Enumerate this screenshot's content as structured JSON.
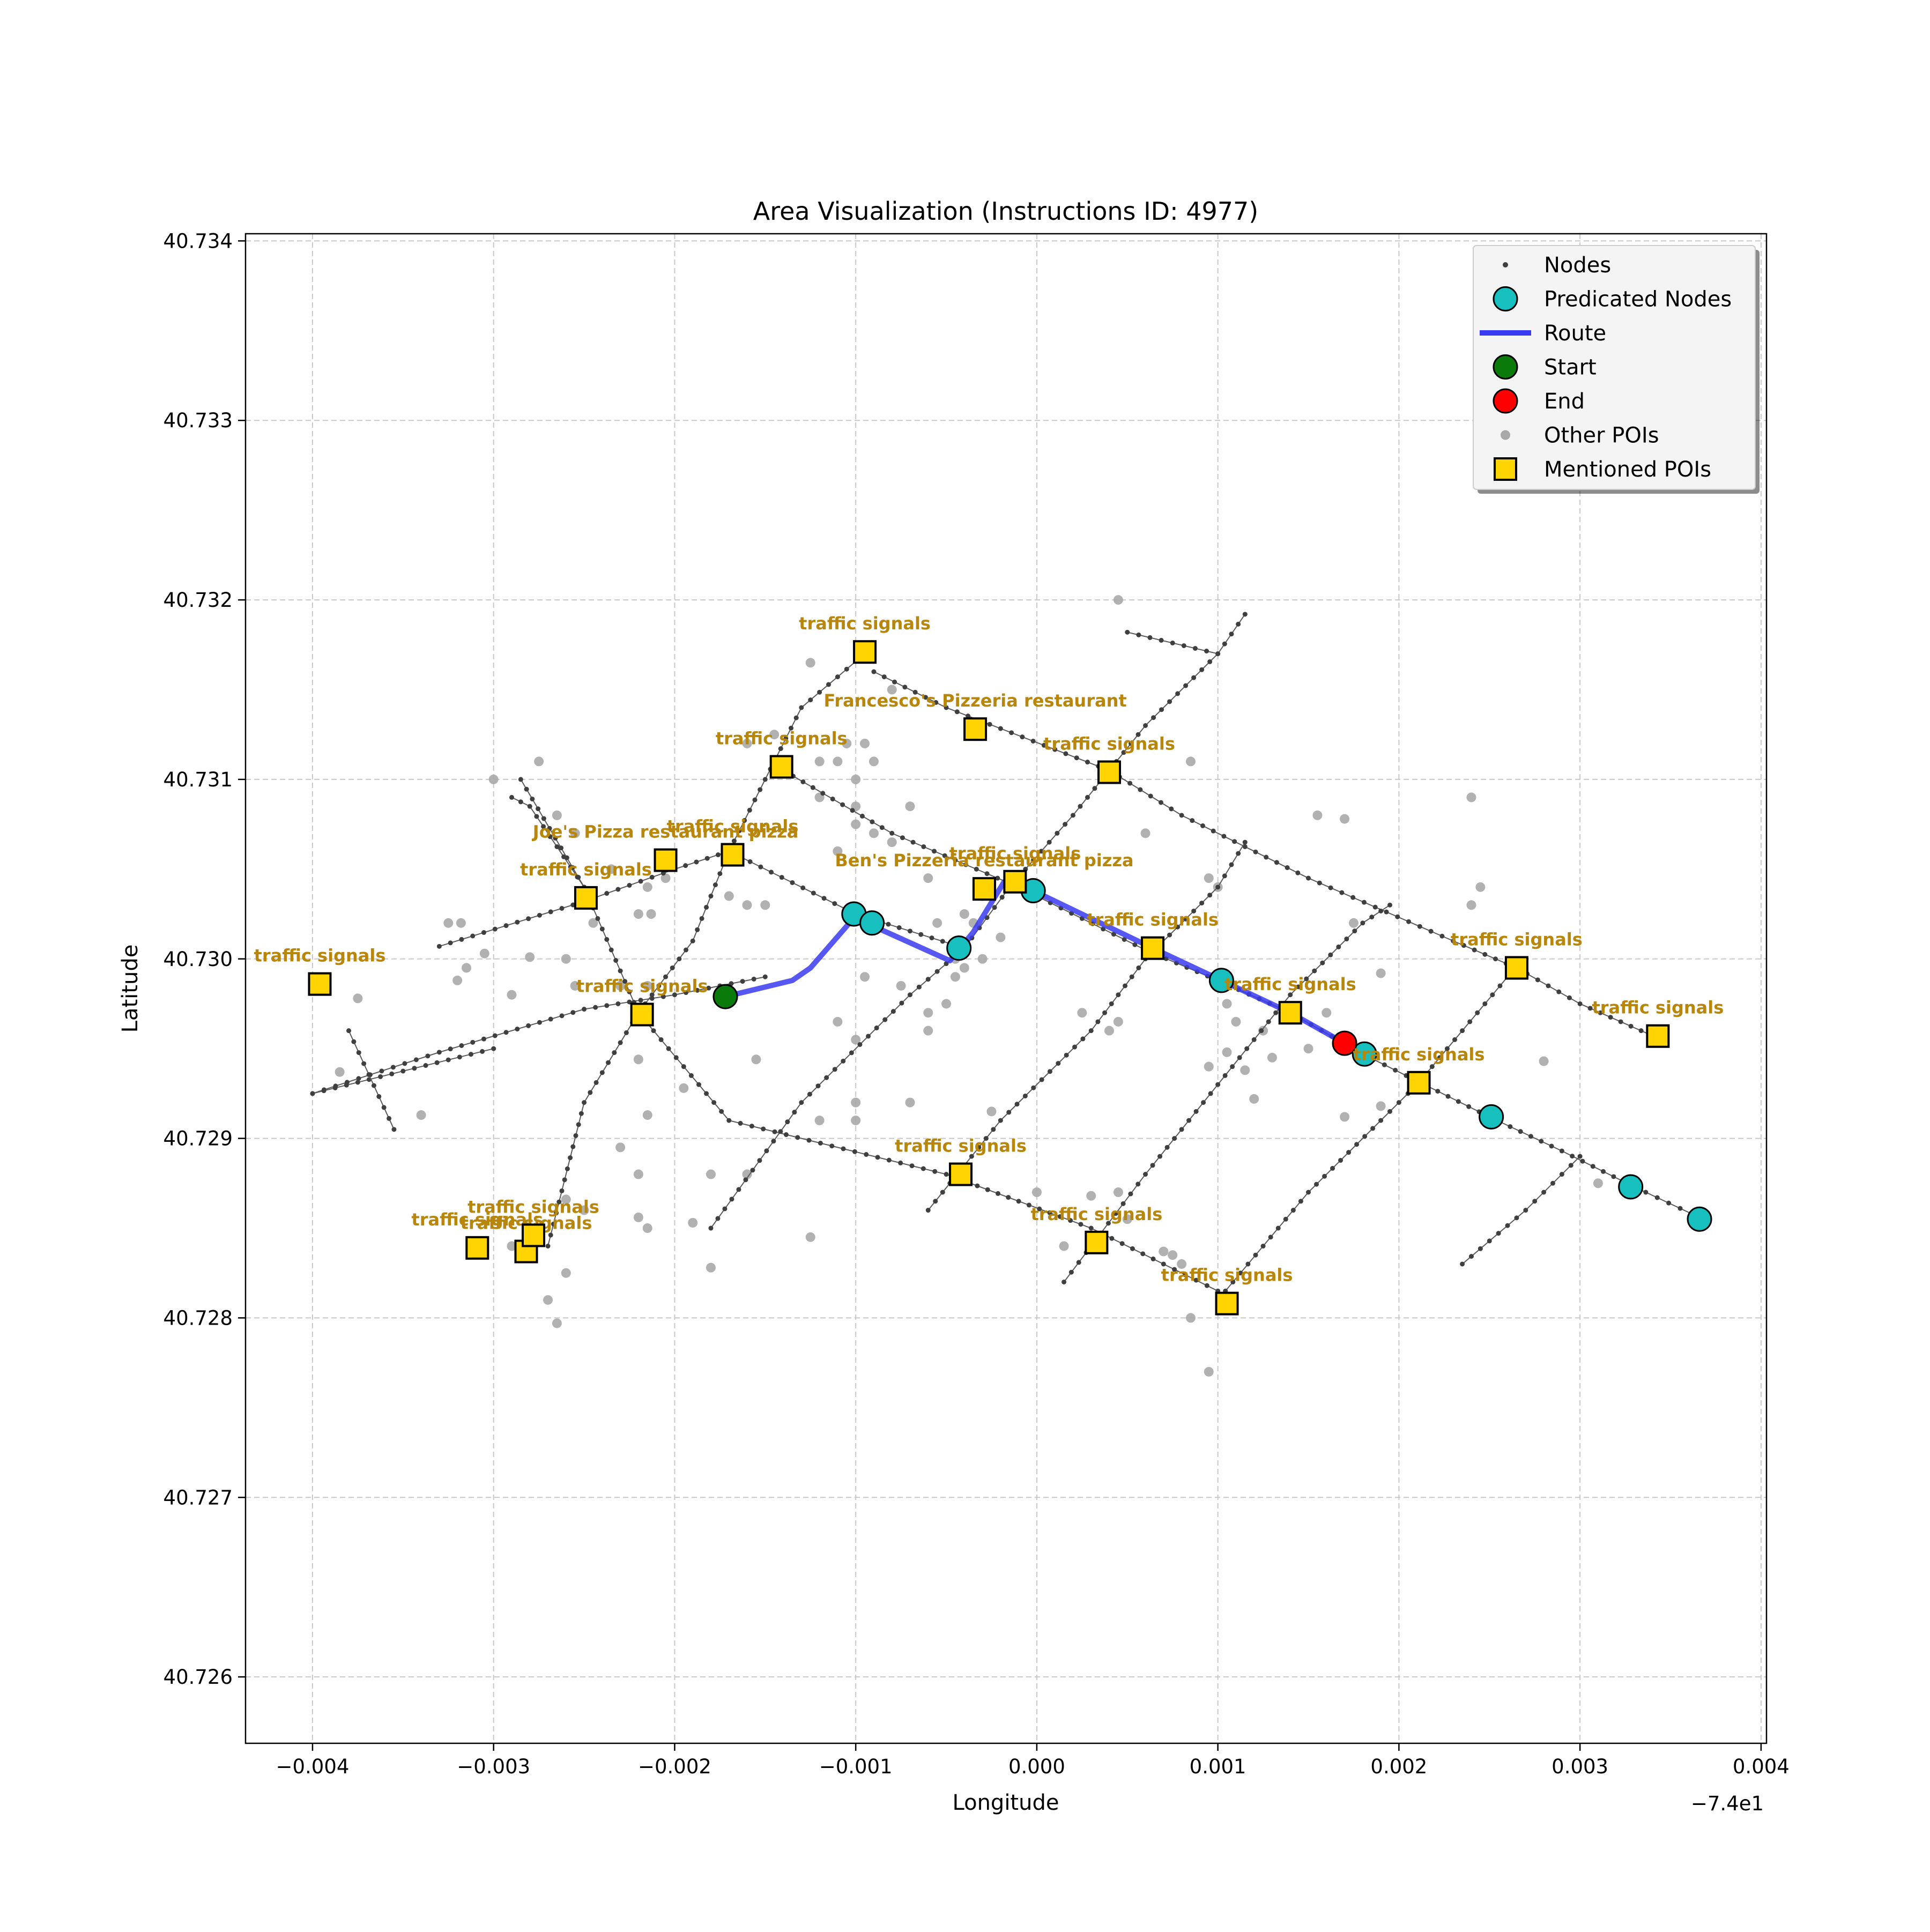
{
  "chart_data": {
    "type": "scatter",
    "title": "Area Visualization (Instructions ID: 4977)",
    "xlabel": "Longitude",
    "ylabel": "Latitude",
    "x_offset_label": "−7.4e1",
    "xlim": [
      -0.00437,
      0.00403
    ],
    "ylim": [
      40.72563,
      40.73404
    ],
    "xticks": [
      -0.004,
      -0.003,
      -0.002,
      -0.001,
      0.0,
      0.001,
      0.002,
      0.003,
      0.004
    ],
    "xtick_labels": [
      "−0.004",
      "−0.003",
      "−0.002",
      "−0.001",
      "0.000",
      "0.001",
      "0.002",
      "0.003",
      "0.004"
    ],
    "yticks": [
      40.726,
      40.727,
      40.728,
      40.729,
      40.73,
      40.731,
      40.732,
      40.733,
      40.734
    ],
    "ytick_labels": [
      "40.726",
      "40.727",
      "40.728",
      "40.729",
      "40.730",
      "40.731",
      "40.732",
      "40.733",
      "40.734"
    ],
    "grid": true,
    "legend_position": "top-right",
    "legend": [
      {
        "label": "Nodes",
        "kind": "node"
      },
      {
        "label": "Predicated Nodes",
        "kind": "predicated"
      },
      {
        "label": "Route",
        "kind": "route"
      },
      {
        "label": "Start",
        "kind": "start"
      },
      {
        "label": "End",
        "kind": "end"
      },
      {
        "label": "Other POIs",
        "kind": "other"
      },
      {
        "label": "Mentioned POIs",
        "kind": "mentioned"
      }
    ],
    "colors": {
      "node": "#3f3f3f",
      "edge": "#5a5a5a",
      "predicated": "#18bfbf",
      "route": "#3a3af0",
      "start": "#0a7a0a",
      "end": "#ff0000",
      "other_poi": "#a8a8a8",
      "mentioned_poi": "#ffd400",
      "poi_label": "#b8860b"
    },
    "streets": [
      [
        [
          -0.004,
          40.72925
        ],
        [
          -0.0033,
          40.72948
        ],
        [
          -0.0025,
          40.72972
        ],
        [
          -0.002,
          40.7298
        ],
        [
          -0.0015,
          40.7299
        ]
      ],
      [
        [
          -0.0033,
          40.73007
        ],
        [
          -0.0025,
          40.73032
        ],
        [
          -0.002,
          40.7305
        ],
        [
          -0.0017,
          40.7306
        ]
      ],
      [
        [
          -0.0017,
          40.7306
        ],
        [
          -0.001,
          40.73025
        ],
        [
          -0.0004,
          40.73006
        ]
      ],
      [
        [
          -0.004,
          40.72925
        ],
        [
          -0.003,
          40.7295
        ]
      ],
      [
        [
          -0.0029,
          40.7309
        ],
        [
          -0.0028,
          40.73085
        ],
        [
          -0.0025,
          40.7304
        ],
        [
          -0.0022,
          40.7297
        ],
        [
          -0.0017,
          40.7291
        ],
        [
          -0.0005,
          40.7288
        ],
        [
          -0.0001,
          40.72865
        ],
        [
          0.0003,
          40.7285
        ],
        [
          0.0007,
          40.7283
        ],
        [
          0.001,
          40.72815
        ]
      ],
      [
        [
          -0.00285,
          40.731
        ],
        [
          -0.0025,
          40.7304
        ]
      ],
      [
        [
          -0.0038,
          40.7296
        ],
        [
          -0.00355,
          40.72905
        ]
      ],
      [
        [
          -0.0027,
          40.7284
        ],
        [
          -0.0025,
          40.7292
        ],
        [
          -0.0022,
          40.7297
        ],
        [
          -0.0019,
          40.7301
        ],
        [
          -0.0017,
          40.7306
        ],
        [
          -0.0013,
          40.7314
        ],
        [
          -0.00095,
          40.7317
        ]
      ],
      [
        [
          -0.0009,
          40.7316
        ],
        [
          -0.0005,
          40.7314
        ],
        [
          0.0004,
          40.73105
        ],
        [
          0.0008,
          40.7308
        ],
        [
          0.0015,
          40.73045
        ],
        [
          0.0023,
          40.7301
        ],
        [
          0.00265,
          40.72995
        ],
        [
          0.003,
          40.72975
        ],
        [
          0.00345,
          40.72955
        ]
      ],
      [
        [
          -0.0014,
          40.73105
        ],
        [
          -0.0008,
          40.7307
        ],
        [
          -0.0001,
          40.7304
        ],
        [
          0.0006,
          40.73005
        ],
        [
          0.001,
          40.72988
        ],
        [
          0.0014,
          40.7297
        ],
        [
          0.0018,
          40.72947
        ],
        [
          0.0021,
          40.72932
        ],
        [
          0.0025,
          40.72912
        ],
        [
          0.0029,
          40.72893
        ],
        [
          0.0033,
          40.72873
        ],
        [
          0.00368,
          40.72855
        ]
      ],
      [
        [
          -0.0018,
          40.7285
        ],
        [
          -0.0013,
          40.7292
        ],
        [
          -0.0007,
          40.7298
        ],
        [
          -0.0004,
          40.73006
        ],
        [
          -0.00015,
          40.7304
        ],
        [
          0.0002,
          40.7308
        ],
        [
          0.0006,
          40.7313
        ],
        [
          0.001,
          40.7317
        ],
        [
          0.00115,
          40.73192
        ]
      ],
      [
        [
          0.0005,
          40.73182
        ],
        [
          0.001,
          40.7317
        ]
      ],
      [
        [
          -0.0006,
          40.7286
        ],
        [
          -0.0002,
          40.7291
        ],
        [
          0.0003,
          40.7296
        ],
        [
          0.0006,
          40.73
        ],
        [
          0.001,
          40.7304
        ],
        [
          0.00115,
          40.73065
        ]
      ],
      [
        [
          0.00015,
          40.7282
        ],
        [
          0.0006,
          40.7288
        ],
        [
          0.001,
          40.7293
        ],
        [
          0.0014,
          40.7298
        ],
        [
          0.0018,
          40.7302
        ],
        [
          0.00195,
          40.7303
        ]
      ],
      [
        [
          0.001,
          40.7281
        ],
        [
          0.0015,
          40.7287
        ],
        [
          0.0019,
          40.7291
        ],
        [
          0.0021,
          40.7293
        ],
        [
          0.0026,
          40.7299
        ],
        [
          0.00268,
          40.72998
        ]
      ],
      [
        [
          0.00235,
          40.7283
        ],
        [
          0.0027,
          40.7286
        ],
        [
          0.003,
          40.7289
        ]
      ]
    ],
    "route": [
      [
        -0.00172,
        40.72979
      ],
      [
        -0.00135,
        40.72988
      ],
      [
        -0.00125,
        40.72995
      ],
      [
        -0.001,
        40.73024
      ],
      [
        -0.00092,
        40.73019
      ],
      [
        -0.00048,
        40.72999
      ],
      [
        -0.00035,
        40.73015
      ],
      [
        -0.00018,
        40.73043
      ],
      [
        -2e-05,
        40.73038
      ],
      [
        0.00064,
        40.73006
      ],
      [
        0.00102,
        40.72988
      ],
      [
        0.0014,
        40.7297
      ],
      [
        0.0017,
        40.72953
      ],
      [
        0.00182,
        40.72947
      ]
    ],
    "predicated_nodes": [
      [
        -0.00101,
        40.73025
      ],
      [
        -0.00091,
        40.7302
      ],
      [
        -0.00043,
        40.73006
      ],
      [
        -2e-05,
        40.73038
      ],
      [
        0.00102,
        40.72988
      ],
      [
        0.00181,
        40.72947
      ],
      [
        0.00251,
        40.72912
      ],
      [
        0.00328,
        40.72873
      ],
      [
        0.00366,
        40.72855
      ]
    ],
    "start": [
      -0.00172,
      40.72979
    ],
    "end": [
      0.0017,
      40.72953
    ],
    "other_pois": [
      [
        -0.003,
        40.731
      ],
      [
        -0.00275,
        40.7311
      ],
      [
        -0.00265,
        40.7308
      ],
      [
        -0.00255,
        40.7307
      ],
      [
        -0.00235,
        40.7305
      ],
      [
        -0.00215,
        40.7304
      ],
      [
        -0.00205,
        40.73045
      ],
      [
        -0.0022,
        40.73025
      ],
      [
        -0.00213,
        40.73025
      ],
      [
        -0.00245,
        40.7302
      ],
      [
        -0.00325,
        40.7302
      ],
      [
        -0.00318,
        40.7302
      ],
      [
        -0.00305,
        40.73003
      ],
      [
        -0.0028,
        40.73001
      ],
      [
        -0.0026,
        40.73
      ],
      [
        -0.00315,
        40.72995
      ],
      [
        -0.0032,
        40.72988
      ],
      [
        -0.0029,
        40.7298
      ],
      [
        -0.0023,
        40.72985
      ],
      [
        -0.00255,
        40.72985
      ],
      [
        -0.00215,
        40.72985
      ],
      [
        -0.00375,
        40.72978
      ],
      [
        -0.00385,
        40.72937
      ],
      [
        -0.0034,
        40.72913
      ],
      [
        -0.0022,
        40.72944
      ],
      [
        -0.00215,
        40.72913
      ],
      [
        -0.00195,
        40.72928
      ],
      [
        -0.0023,
        40.72895
      ],
      [
        -0.0022,
        40.7288
      ],
      [
        -0.0018,
        40.7288
      ],
      [
        -0.0026,
        40.72866
      ],
      [
        -0.0025,
        40.7286
      ],
      [
        -0.0022,
        40.72856
      ],
      [
        -0.00215,
        40.7285
      ],
      [
        -0.0019,
        40.72853
      ],
      [
        -0.0027,
        40.7281
      ],
      [
        -0.0026,
        40.72825
      ],
      [
        -0.0029,
        40.7284
      ],
      [
        -0.0028,
        40.7284
      ],
      [
        -0.00265,
        40.72797
      ],
      [
        -0.0018,
        40.72828
      ],
      [
        -0.0016,
        40.7288
      ],
      [
        -0.00125,
        40.72845
      ],
      [
        -0.00155,
        40.72944
      ],
      [
        -0.0015,
        40.7303
      ],
      [
        -0.0016,
        40.7303
      ],
      [
        -0.0017,
        40.73035
      ],
      [
        -0.0016,
        40.7312
      ],
      [
        -0.00145,
        40.73125
      ],
      [
        -0.00125,
        40.73165
      ],
      [
        -0.00105,
        40.7312
      ],
      [
        -0.00095,
        40.7312
      ],
      [
        -0.0008,
        40.7315
      ],
      [
        -0.0012,
        40.7311
      ],
      [
        -0.0011,
        40.7311
      ],
      [
        -0.001,
        40.731
      ],
      [
        -0.0009,
        40.7311
      ],
      [
        -0.0012,
        40.7309
      ],
      [
        -0.001,
        40.73085
      ],
      [
        -0.001,
        40.73075
      ],
      [
        -0.0009,
        40.7307
      ],
      [
        -0.0008,
        40.73065
      ],
      [
        -0.0007,
        40.73085
      ],
      [
        -0.0011,
        40.7306
      ],
      [
        -0.0006,
        40.73045
      ],
      [
        -0.00055,
        40.7302
      ],
      [
        -0.0004,
        40.73025
      ],
      [
        -0.00035,
        40.7302
      ],
      [
        -0.0003,
        40.73035
      ],
      [
        -0.0003,
        40.73
      ],
      [
        -0.0002,
        40.73012
      ],
      [
        -0.00045,
        40.73
      ],
      [
        -0.0004,
        40.72995
      ],
      [
        -0.00045,
        40.7299
      ],
      [
        -0.0005,
        40.72975
      ],
      [
        -0.0006,
        40.7297
      ],
      [
        -0.0006,
        40.7296
      ],
      [
        -0.00075,
        40.72985
      ],
      [
        -0.00095,
        40.7299
      ],
      [
        -0.0011,
        40.72965
      ],
      [
        -0.001,
        40.72955
      ],
      [
        -0.0012,
        40.7291
      ],
      [
        -0.001,
        40.7292
      ],
      [
        -0.001,
        40.7291
      ],
      [
        -0.0007,
        40.7292
      ],
      [
        -0.00025,
        40.72915
      ],
      [
        0.0,
        40.7287
      ],
      [
        0.0003,
        40.72868
      ],
      [
        0.00045,
        40.7287
      ],
      [
        0.0005,
        40.72855
      ],
      [
        0.00015,
        40.7284
      ],
      [
        0.00025,
        40.7297
      ],
      [
        0.0004,
        40.7296
      ],
      [
        0.00045,
        40.72965
      ],
      [
        0.0006,
        40.7307
      ],
      [
        0.00045,
        40.732
      ],
      [
        0.00085,
        40.7311
      ],
      [
        0.00095,
        40.73045
      ],
      [
        0.001,
        40.7304
      ],
      [
        0.00105,
        40.72975
      ],
      [
        0.0011,
        40.72965
      ],
      [
        0.00105,
        40.72948
      ],
      [
        0.00095,
        40.7294
      ],
      [
        0.00115,
        40.72938
      ],
      [
        0.0012,
        40.72922
      ],
      [
        0.0013,
        40.72945
      ],
      [
        0.0015,
        40.7295
      ],
      [
        0.00125,
        40.7296
      ],
      [
        0.0016,
        40.7297
      ],
      [
        0.00175,
        40.7302
      ],
      [
        0.0019,
        40.72992
      ],
      [
        0.00155,
        40.7308
      ],
      [
        0.0017,
        40.73078
      ],
      [
        0.00245,
        40.7304
      ],
      [
        0.0024,
        40.7303
      ],
      [
        0.0024,
        40.7309
      ],
      [
        0.0028,
        40.72943
      ],
      [
        0.0031,
        40.72875
      ],
      [
        0.0017,
        40.72912
      ],
      [
        0.0019,
        40.72918
      ],
      [
        0.0007,
        40.72837
      ],
      [
        0.00075,
        40.72835
      ],
      [
        0.0008,
        40.7283
      ],
      [
        0.00085,
        40.728
      ],
      [
        0.00095,
        40.7277
      ]
    ],
    "mentioned_pois": [
      {
        "label": "traffic signals",
        "lon": -0.00396,
        "lat": 40.72986
      },
      {
        "label": "traffic signals",
        "lon": -0.00249,
        "lat": 40.73034
      },
      {
        "label": "Joe's Pizza restaurant pizza",
        "lon": -0.00205,
        "lat": 40.73055
      },
      {
        "label": "traffic signals",
        "lon": -0.00168,
        "lat": 40.73058
      },
      {
        "label": "traffic signals",
        "lon": -0.00218,
        "lat": 40.72969
      },
      {
        "label": "traffic signals",
        "lon": -0.00141,
        "lat": 40.73107
      },
      {
        "label": "traffic signals",
        "lon": -0.00095,
        "lat": 40.73171
      },
      {
        "label": "Francesco's Pizzeria restaurant",
        "lon": -0.00034,
        "lat": 40.73128
      },
      {
        "label": "traffic signals",
        "lon": 0.0004,
        "lat": 40.73104
      },
      {
        "label": "Ben's Pizzeria restaurant pizza",
        "lon": -0.00029,
        "lat": 40.73039
      },
      {
        "label": "traffic signals",
        "lon": -0.00012,
        "lat": 40.73043
      },
      {
        "label": "traffic signals",
        "lon": 0.00064,
        "lat": 40.73006
      },
      {
        "label": "traffic signals",
        "lon": 0.0014,
        "lat": 40.7297
      },
      {
        "label": "traffic signals",
        "lon": 0.00211,
        "lat": 40.72931
      },
      {
        "label": "traffic signals",
        "lon": 0.00265,
        "lat": 40.72995
      },
      {
        "label": "traffic signals",
        "lon": 0.00343,
        "lat": 40.72957
      },
      {
        "label": "traffic signals",
        "lon": -0.00042,
        "lat": 40.7288
      },
      {
        "label": "traffic signals",
        "lon": 0.00033,
        "lat": 40.72842
      },
      {
        "label": "traffic signals",
        "lon": 0.00105,
        "lat": 40.72808
      },
      {
        "label": "traffic signals",
        "lon": -0.00309,
        "lat": 40.72839
      },
      {
        "label": "traffic signals",
        "lon": -0.00282,
        "lat": 40.72837
      },
      {
        "label": "traffic signals",
        "lon": -0.00278,
        "lat": 40.72846
      }
    ]
  }
}
